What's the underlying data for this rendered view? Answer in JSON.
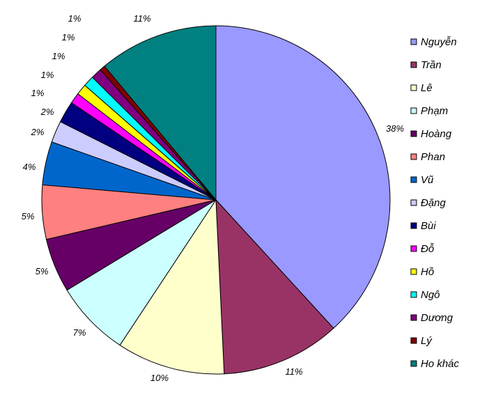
{
  "chart_data": {
    "type": "pie",
    "title": "",
    "legend_position": "right",
    "slices": [
      {
        "label": "Nguyễn",
        "value": 38,
        "display": "38%",
        "color": "#9999ff"
      },
      {
        "label": "Trần",
        "value": 11,
        "display": "11%",
        "color": "#993366"
      },
      {
        "label": "Lê",
        "value": 10,
        "display": "10%",
        "color": "#ffffcc"
      },
      {
        "label": "Phạm",
        "value": 7,
        "display": "7%",
        "color": "#ccffff"
      },
      {
        "label": "Hoàng",
        "value": 5,
        "display": "5%",
        "color": "#660066"
      },
      {
        "label": "Phan",
        "value": 5,
        "display": "5%",
        "color": "#ff8080"
      },
      {
        "label": "Vũ",
        "value": 4,
        "display": "4%",
        "color": "#0066cc"
      },
      {
        "label": "Đặng",
        "value": 2,
        "display": "2%",
        "color": "#ccccff"
      },
      {
        "label": "Bùi",
        "value": 2,
        "display": "2%",
        "color": "#000080"
      },
      {
        "label": "Đỗ",
        "value": 1,
        "display": "1%",
        "color": "#ff00ff"
      },
      {
        "label": "Hồ",
        "value": 1,
        "display": "1%",
        "color": "#ffff00"
      },
      {
        "label": "Ngô",
        "value": 1,
        "display": "1%",
        "color": "#00ffff"
      },
      {
        "label": "Dương",
        "value": 1,
        "display": "1%",
        "color": "#800080"
      },
      {
        "label": "Lý",
        "value": 0.5,
        "display": "1%",
        "color": "#800000"
      },
      {
        "label": "Ho khác",
        "value": 11,
        "display": "11%",
        "color": "#008080"
      }
    ]
  }
}
